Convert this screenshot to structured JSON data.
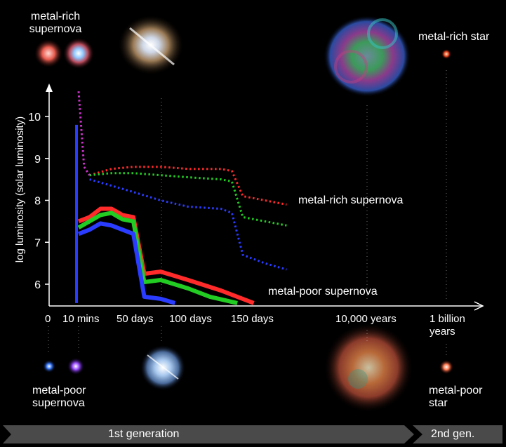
{
  "colors": {
    "background": "#000000",
    "text": "#ffffff",
    "rich_red": "#ff2a2a",
    "rich_green": "#22cc22",
    "rich_blue": "#2a3cff",
    "magenta": "#cc33cc",
    "banner": "#4a4a4a"
  },
  "labels": {
    "metal_rich_supernova_top": "metal-rich\nsupernova",
    "metal_rich_star": "metal-rich star",
    "metal_poor_supernova_bottom": "metal-poor\nsupernova",
    "metal_poor_star": "metal-poor\nstar",
    "series_rich": "metal-rich supernova",
    "series_poor": "metal-poor supernova"
  },
  "timeline": {
    "gen1": "1st generation",
    "gen2": "2nd gen."
  },
  "chart_data": {
    "type": "line",
    "ylabel": "log luminosity (solar luminosity)",
    "xlabel": "",
    "ylim": [
      5.5,
      10.8
    ],
    "yticks": [
      6,
      7,
      8,
      9,
      10
    ],
    "xticks": [
      "0",
      "10 mins",
      "50 days",
      "100 days",
      "150 days",
      "10,000 years",
      "1 billion\nyears"
    ],
    "series": [
      {
        "name": "metal-rich supernova",
        "group": "metal-rich",
        "color": "red",
        "style": "dotted",
        "points": [
          [
            10,
            8.6
          ],
          [
            30,
            8.75
          ],
          [
            50,
            8.8
          ],
          [
            75,
            8.8
          ],
          [
            100,
            8.75
          ],
          [
            130,
            8.75
          ],
          [
            140,
            8.7
          ],
          [
            150,
            8.1
          ],
          [
            170,
            8.0
          ],
          [
            190,
            7.9
          ]
        ]
      },
      {
        "name": "",
        "group": "metal-rich",
        "color": "green",
        "style": "dotted",
        "points": [
          [
            10,
            8.6
          ],
          [
            30,
            8.65
          ],
          [
            50,
            8.65
          ],
          [
            75,
            8.6
          ],
          [
            100,
            8.55
          ],
          [
            130,
            8.5
          ],
          [
            140,
            8.45
          ],
          [
            150,
            7.6
          ],
          [
            170,
            7.5
          ],
          [
            190,
            7.4
          ]
        ]
      },
      {
        "name": "",
        "group": "metal-rich",
        "color": "blue",
        "style": "dotted",
        "points": [
          [
            10,
            8.5
          ],
          [
            30,
            8.35
          ],
          [
            50,
            8.2
          ],
          [
            75,
            8.0
          ],
          [
            100,
            7.85
          ],
          [
            130,
            7.8
          ],
          [
            140,
            7.7
          ],
          [
            150,
            6.7
          ],
          [
            170,
            6.5
          ],
          [
            190,
            6.35
          ]
        ]
      },
      {
        "name": "",
        "group": "metal-rich",
        "color": "magenta",
        "style": "dotted",
        "points": [
          [
            0,
            10.6
          ],
          [
            5,
            8.8
          ],
          [
            10,
            8.6
          ]
        ]
      },
      {
        "name": "metal-poor supernova",
        "group": "metal-poor",
        "color": "red",
        "style": "solid",
        "points": [
          [
            0,
            7.5
          ],
          [
            10,
            7.6
          ],
          [
            20,
            7.8
          ],
          [
            30,
            7.8
          ],
          [
            40,
            7.65
          ],
          [
            50,
            7.6
          ],
          [
            60,
            6.25
          ],
          [
            75,
            6.3
          ],
          [
            100,
            6.1
          ],
          [
            130,
            5.85
          ],
          [
            160,
            5.55
          ]
        ]
      },
      {
        "name": "",
        "group": "metal-poor",
        "color": "green",
        "style": "solid",
        "points": [
          [
            0,
            7.35
          ],
          [
            10,
            7.5
          ],
          [
            20,
            7.65
          ],
          [
            30,
            7.7
          ],
          [
            40,
            7.55
          ],
          [
            50,
            7.5
          ],
          [
            60,
            6.05
          ],
          [
            75,
            6.1
          ],
          [
            100,
            5.9
          ],
          [
            120,
            5.7
          ],
          [
            145,
            5.55
          ]
        ]
      },
      {
        "name": "",
        "group": "metal-poor",
        "color": "blue",
        "style": "solid",
        "points": [
          [
            0,
            7.2
          ],
          [
            10,
            7.3
          ],
          [
            20,
            7.45
          ],
          [
            30,
            7.4
          ],
          [
            40,
            7.3
          ],
          [
            50,
            7.2
          ],
          [
            60,
            5.7
          ],
          [
            75,
            5.65
          ],
          [
            88,
            5.55
          ]
        ]
      },
      {
        "name": "",
        "group": "metal-poor",
        "color": "blue",
        "style": "solid",
        "points": [
          [
            -1,
            9.8
          ],
          [
            -1,
            5.55
          ]
        ]
      }
    ]
  }
}
